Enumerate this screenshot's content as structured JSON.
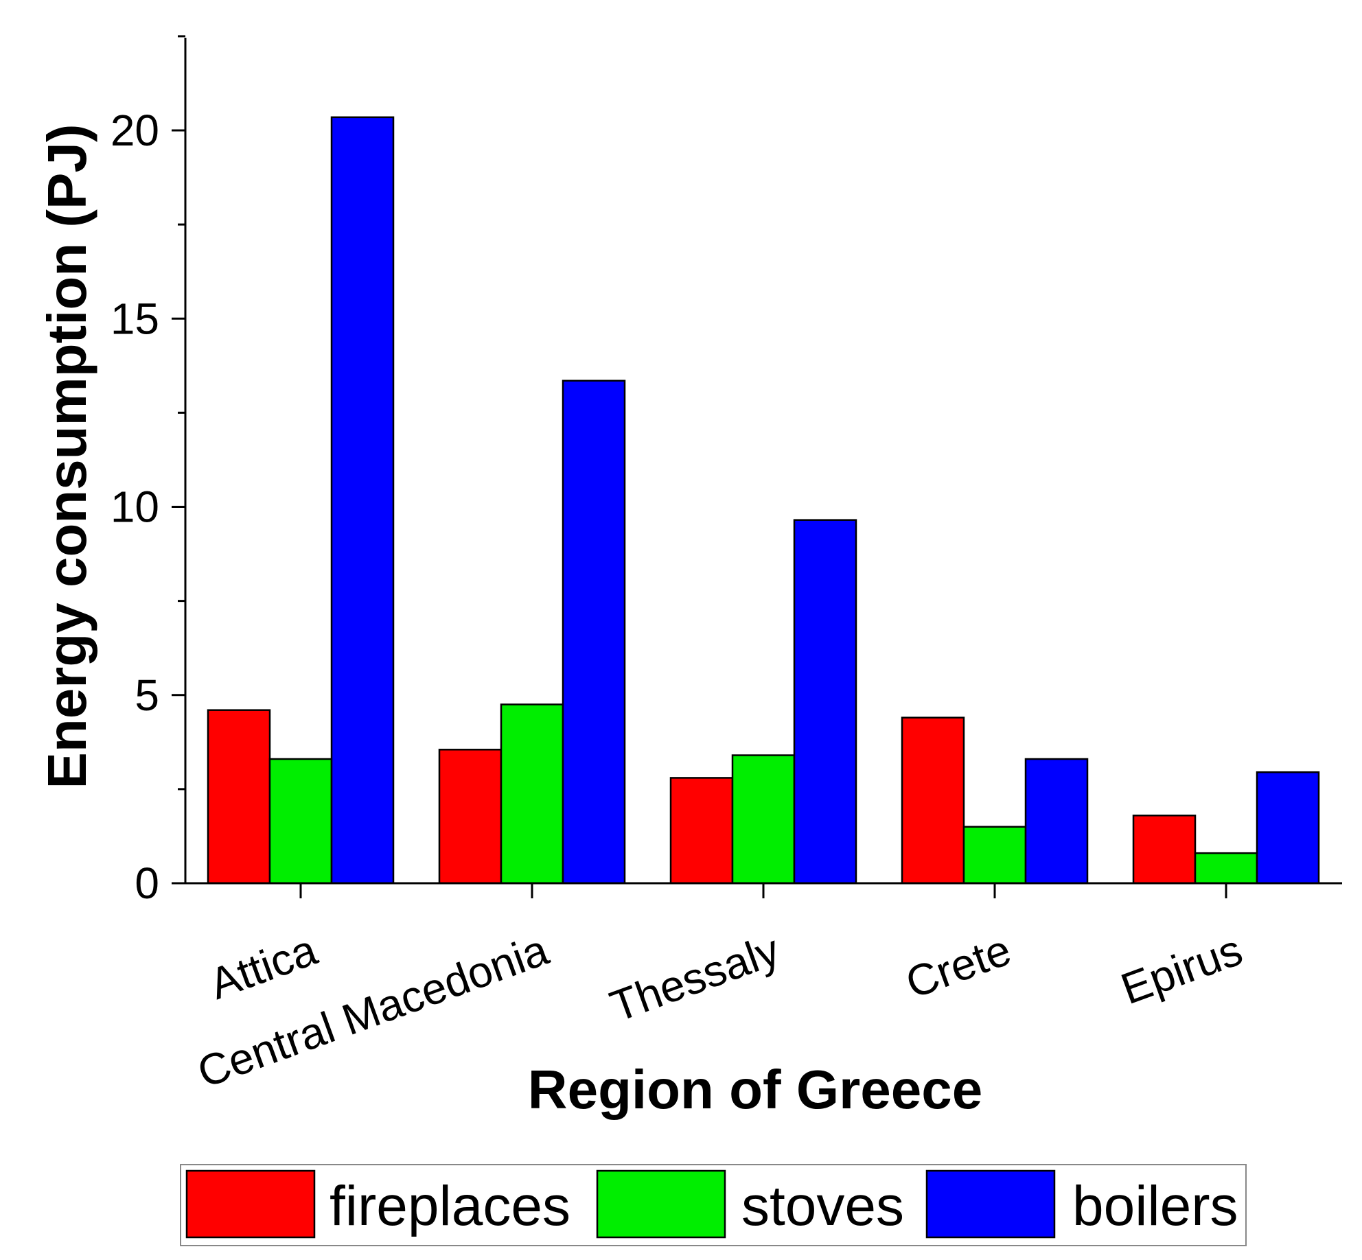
{
  "chart_data": {
    "type": "bar",
    "title": "",
    "xlabel": "Region of Greece",
    "ylabel": "Energy consumption (PJ)",
    "ylim": [
      0,
      22.5
    ],
    "yticks": [
      0,
      5,
      10,
      15,
      20
    ],
    "ytick_labels": [
      "0",
      "5",
      "10",
      "15",
      "20"
    ],
    "categories": [
      "Attica",
      "Central Macedonia",
      "Thessaly",
      "Crete",
      "Epirus"
    ],
    "series": [
      {
        "name": "fireplaces",
        "color": "#ff0000",
        "values": [
          4.6,
          3.55,
          2.8,
          4.4,
          1.8
        ]
      },
      {
        "name": "stoves",
        "color": "#00ee00",
        "values": [
          3.3,
          4.75,
          3.4,
          1.5,
          0.8
        ]
      },
      {
        "name": "boilers",
        "color": "#0000ff",
        "values": [
          20.35,
          13.35,
          9.65,
          3.3,
          2.95
        ]
      }
    ],
    "grid": false,
    "legend_position": "bottom"
  }
}
